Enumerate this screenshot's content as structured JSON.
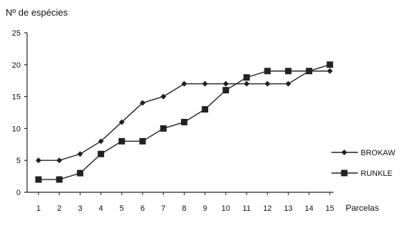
{
  "chart_data": {
    "type": "line",
    "ylabel": "Nº de espécies",
    "xlabel": "Parcelas",
    "x": [
      1,
      2,
      3,
      4,
      5,
      6,
      7,
      8,
      9,
      10,
      11,
      12,
      13,
      14,
      15
    ],
    "ylim": [
      0,
      25
    ],
    "yticks": [
      0,
      5,
      10,
      15,
      20,
      25
    ],
    "grid": false,
    "legend_position": "right",
    "series": [
      {
        "name": "BROKAW",
        "marker": "diamond",
        "values": [
          5,
          5,
          6,
          8,
          11,
          14,
          15,
          17,
          17,
          17,
          17,
          17,
          17,
          19,
          19
        ]
      },
      {
        "name": "RUNKLE",
        "marker": "square",
        "values": [
          2,
          2,
          3,
          6,
          8,
          8,
          10,
          11,
          13,
          16,
          18,
          19,
          19,
          19,
          20
        ]
      }
    ]
  },
  "colors": {
    "line": "#222222",
    "background": "#ffffff"
  }
}
